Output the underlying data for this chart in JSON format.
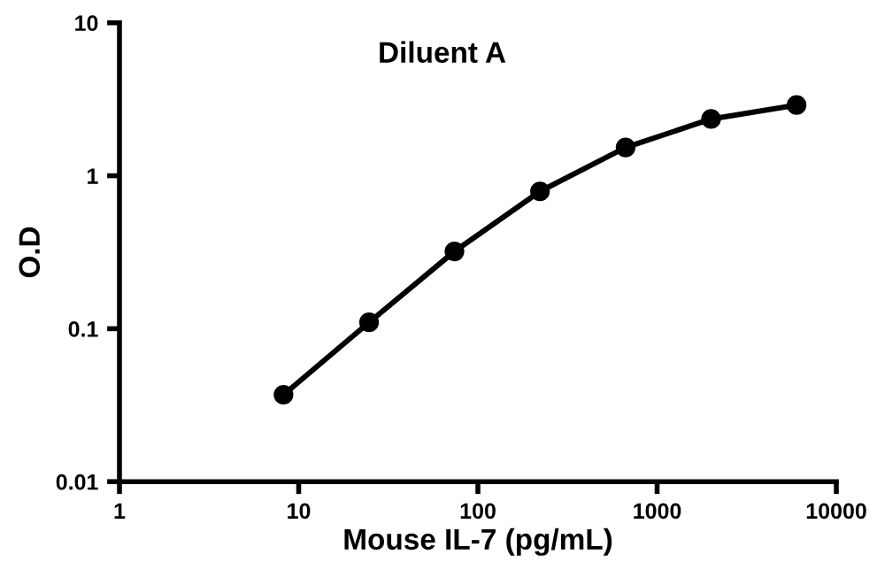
{
  "chart_data": {
    "type": "line",
    "title": "Diluent A",
    "xlabel": "Mouse IL-7 (pg/mL)",
    "ylabel": "O.D",
    "log": "xy",
    "xlim": [
      1,
      10000
    ],
    "ylim": [
      0.01,
      10
    ],
    "xticks": [
      1,
      10,
      100,
      1000,
      10000
    ],
    "yticks": [
      0.01,
      0.1,
      1,
      10
    ],
    "x": [
      8.23,
      24.7,
      74,
      222,
      667,
      2000,
      6000
    ],
    "series": [
      {
        "color": "#000000",
        "values": [
          0.037,
          0.11,
          0.32,
          0.79,
          1.53,
          2.35,
          2.9
        ]
      }
    ],
    "marker": "circle",
    "line_style": "solid",
    "grid": false,
    "legend": false
  }
}
